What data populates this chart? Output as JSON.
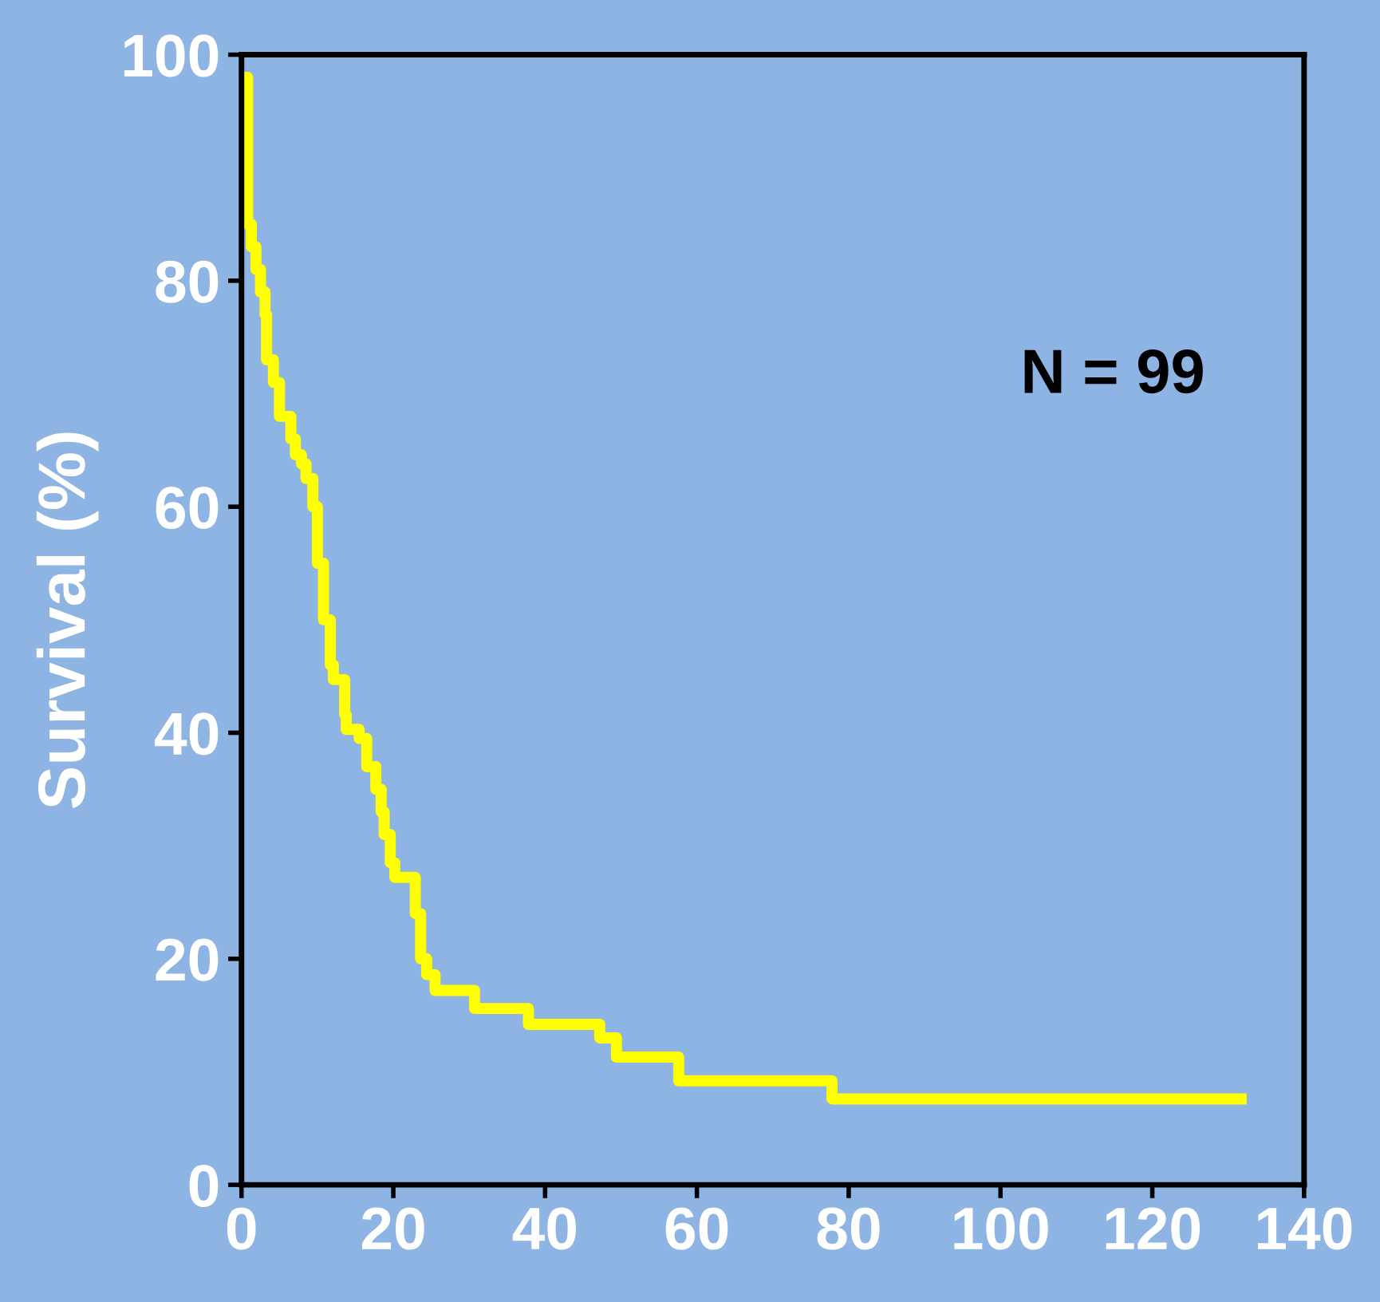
{
  "chart_data": {
    "type": "step",
    "ylabel": "Survival (%)",
    "x": [
      0,
      0.8,
      1.3,
      1.9,
      2.5,
      3.1,
      3.3,
      4.2,
      5,
      6.5,
      7.1,
      7.9,
      8.5,
      9.4,
      10,
      10.8,
      11.7,
      12.1,
      13.6,
      13.8,
      15.5,
      16.5,
      17.7,
      18.4,
      18.8,
      19.6,
      20.2,
      22.9,
      23.6,
      24.4,
      25.5,
      30.7,
      37.8,
      47.2,
      49.4,
      57.6,
      77.8,
      131.7
    ],
    "series": [
      {
        "color": "#ffff00",
        "values": [
          98,
          85,
          83,
          81,
          79,
          77,
          73,
          71,
          68,
          66,
          64.6,
          63.8,
          62.5,
          60,
          55,
          50,
          46,
          44.7,
          41.6,
          40.3,
          39.5,
          37,
          35,
          33,
          31,
          28.5,
          27.2,
          24,
          20,
          18.6,
          17.2,
          15.6,
          14.2,
          13,
          11.3,
          9.2,
          7.6,
          7.6
        ]
      }
    ],
    "xlim": [
      0,
      140
    ],
    "xticks": [
      0,
      20,
      40,
      60,
      80,
      100,
      120,
      140
    ],
    "ylim": [
      0,
      100
    ],
    "yticks": [
      0,
      20,
      40,
      60,
      80,
      100
    ],
    "grid": false,
    "legend": false,
    "marker": "none",
    "line_style": "solid",
    "annotations": [
      "N = 99"
    ]
  }
}
